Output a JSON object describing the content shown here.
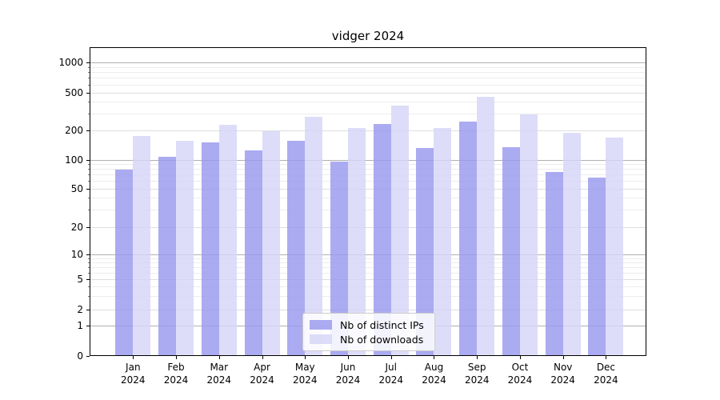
{
  "figure": {
    "background": "#ffffff"
  },
  "chart_data": {
    "type": "bar",
    "title": "vidger 2024",
    "yscale": "symlog",
    "grid": true,
    "legend_position": "lower center",
    "ylim": [
      0,
      1460
    ],
    "y_ticks": [
      0,
      1,
      2,
      5,
      10,
      20,
      50,
      100,
      200,
      500,
      1000
    ],
    "y_minor_gridlines": [
      2,
      3,
      4,
      5,
      6,
      7,
      8,
      9,
      20,
      30,
      40,
      50,
      60,
      70,
      80,
      90,
      200,
      300,
      400,
      500,
      600,
      700,
      800,
      900
    ],
    "y_major_gridlines": [
      1,
      10,
      100,
      1000
    ],
    "categories": [
      "Jan 2024",
      "Feb 2024",
      "Mar 2024",
      "Apr 2024",
      "May 2024",
      "Jun 2024",
      "Jul 2024",
      "Aug 2024",
      "Sep 2024",
      "Oct 2024",
      "Nov 2024",
      "Dec 2024"
    ],
    "x_tick_month": [
      "Jan",
      "Feb",
      "Mar",
      "Apr",
      "May",
      "Jun",
      "Jul",
      "Aug",
      "Sep",
      "Oct",
      "Nov",
      "Dec"
    ],
    "x_tick_year": "2024",
    "series": [
      {
        "name": "Nb of distinct IPs",
        "slug": "distinct-ips",
        "color": "#9898ee",
        "values": [
          80,
          108,
          153,
          127,
          157,
          96,
          238,
          134,
          250,
          137,
          75,
          66
        ]
      },
      {
        "name": "Nb of downloads",
        "slug": "downloads",
        "color": "#d6d6f8",
        "values": [
          178,
          158,
          231,
          197,
          280,
          213,
          371,
          213,
          458,
          300,
          193,
          170
        ]
      }
    ],
    "grid_major_color": "#b0b0b0",
    "grid_minor_color": "#ececec",
    "grid_minor_labeled_color": "#dedede"
  }
}
